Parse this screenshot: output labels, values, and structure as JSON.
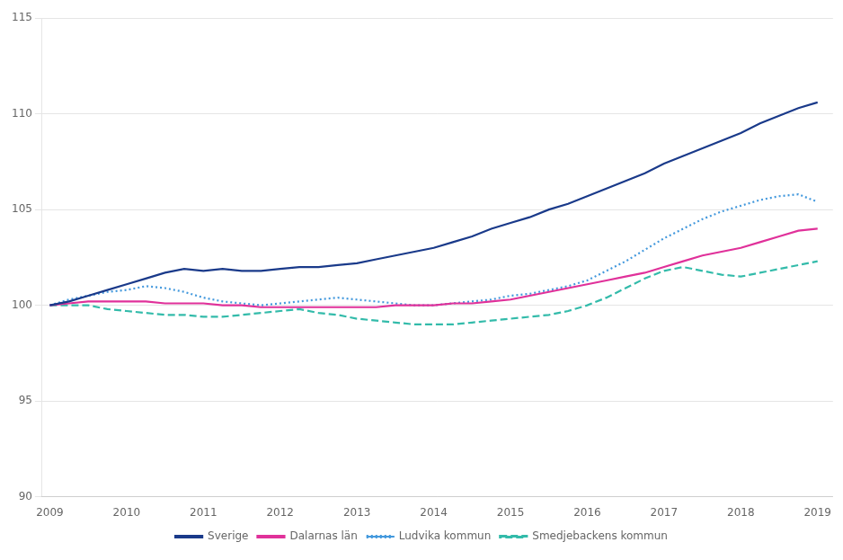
{
  "chart_data": {
    "type": "line",
    "x": [
      2009,
      2009.25,
      2009.5,
      2009.75,
      2010,
      2010.25,
      2010.5,
      2010.75,
      2011,
      2011.25,
      2011.5,
      2011.75,
      2012,
      2012.25,
      2012.5,
      2012.75,
      2013,
      2013.25,
      2013.5,
      2013.75,
      2014,
      2014.25,
      2014.5,
      2014.75,
      2015,
      2015.25,
      2015.5,
      2015.75,
      2016,
      2016.25,
      2016.5,
      2016.75,
      2017,
      2017.25,
      2017.5,
      2017.75,
      2018,
      2018.25,
      2018.5,
      2018.75,
      2019
    ],
    "series": [
      {
        "name": "Sverige",
        "color": "#1a3a8a",
        "line_style": "solid",
        "values": [
          100.0,
          100.2,
          100.5,
          100.8,
          101.1,
          101.4,
          101.7,
          101.9,
          101.8,
          101.9,
          101.8,
          101.8,
          101.9,
          102.0,
          102.0,
          102.1,
          102.2,
          102.4,
          102.6,
          102.8,
          103.0,
          103.3,
          103.6,
          104.0,
          104.3,
          104.6,
          105.0,
          105.3,
          105.7,
          106.1,
          106.5,
          106.9,
          107.4,
          107.8,
          108.2,
          108.6,
          109.0,
          109.5,
          109.9,
          110.3,
          110.6
        ]
      },
      {
        "name": "Dalarnas län",
        "color": "#e0319a",
        "line_style": "solid",
        "values": [
          100.0,
          100.1,
          100.2,
          100.2,
          100.2,
          100.2,
          100.1,
          100.1,
          100.1,
          100.0,
          100.0,
          99.9,
          99.9,
          99.9,
          99.9,
          99.9,
          99.9,
          99.9,
          100.0,
          100.0,
          100.0,
          100.1,
          100.1,
          100.2,
          100.3,
          100.5,
          100.7,
          100.9,
          101.1,
          101.3,
          101.5,
          101.7,
          102.0,
          102.3,
          102.6,
          102.8,
          103.0,
          103.3,
          103.6,
          103.9,
          104.0
        ]
      },
      {
        "name": "Ludvika kommun",
        "color": "#4499dd",
        "line_style": "dotted",
        "values": [
          100.0,
          100.3,
          100.5,
          100.7,
          100.8,
          101.0,
          100.9,
          100.7,
          100.4,
          100.2,
          100.1,
          100.0,
          100.1,
          100.2,
          100.3,
          100.4,
          100.3,
          100.2,
          100.1,
          100.0,
          100.0,
          100.1,
          100.2,
          100.3,
          100.5,
          100.6,
          100.8,
          101.0,
          101.3,
          101.8,
          102.3,
          102.9,
          103.5,
          104.0,
          104.5,
          104.9,
          105.2,
          105.5,
          105.7,
          105.8,
          105.4
        ]
      },
      {
        "name": "Smedjebackens kommun",
        "color": "#33bbaa",
        "line_style": "dashed",
        "values": [
          100.0,
          100.0,
          100.0,
          99.8,
          99.7,
          99.6,
          99.5,
          99.5,
          99.4,
          99.4,
          99.5,
          99.6,
          99.7,
          99.8,
          99.6,
          99.5,
          99.3,
          99.2,
          99.1,
          99.0,
          99.0,
          99.0,
          99.1,
          99.2,
          99.3,
          99.4,
          99.5,
          99.7,
          100.0,
          100.4,
          100.9,
          101.4,
          101.8,
          102.0,
          101.8,
          101.6,
          101.5,
          101.7,
          101.9,
          102.1,
          102.3
        ]
      }
    ],
    "xlim": [
      2008.9,
      2019.2
    ],
    "xticks": [
      2009,
      2010,
      2011,
      2012,
      2013,
      2014,
      2015,
      2016,
      2017,
      2018,
      2019
    ],
    "ylim": [
      90,
      115
    ],
    "yticks": [
      90,
      95,
      100,
      105,
      110,
      115
    ],
    "grid": true,
    "legend": "bottom"
  }
}
